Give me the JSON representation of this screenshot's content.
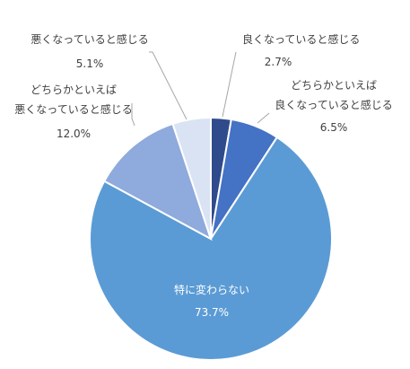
{
  "chart_data": {
    "type": "pie",
    "title": "",
    "start_angle_deg": 0,
    "direction": "clockwise",
    "slices": [
      {
        "label": [
          "良くなっていると感じる"
        ],
        "value": 2.7,
        "value_label": "2.7%",
        "color": "#2f4b8c",
        "label_position": "outside"
      },
      {
        "label": [
          "どちらかといえば",
          "良くなっていると感じる"
        ],
        "value": 6.5,
        "value_label": "6.5%",
        "color": "#4472c4",
        "label_position": "outside"
      },
      {
        "label": [
          "特に変わらない"
        ],
        "value": 73.7,
        "value_label": "73.7%",
        "color": "#5b9bd5",
        "label_position": "inside"
      },
      {
        "label": [
          "どちらかといえば",
          "悪くなっていると感じる"
        ],
        "value": 12.0,
        "value_label": "12.0%",
        "color": "#8faadc",
        "label_position": "outside"
      },
      {
        "label": [
          "悪くなっていると感じる"
        ],
        "value": 5.1,
        "value_label": "5.1%",
        "color": "#dae3f3",
        "label_position": "outside"
      }
    ]
  }
}
